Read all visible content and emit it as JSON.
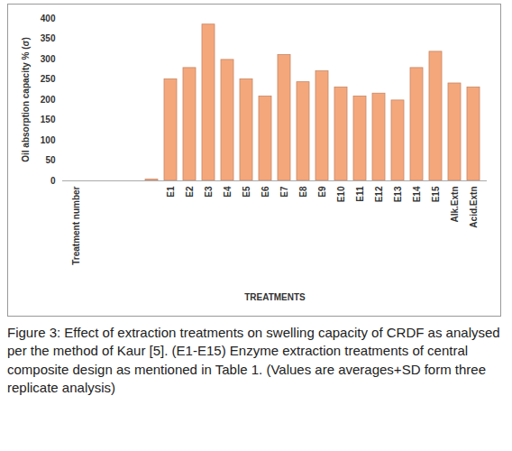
{
  "chart_data": {
    "type": "bar",
    "y_label": "Oil absorption capacity % (σ)",
    "x_label": "TREATMENTS",
    "caption": "Figure 3: Effect of extraction treatments on swelling capacity of CRDF as analysed per the method of Kaur [5]. (E1-E15) Enzyme extraction treatments of central composite design as mentioned in Table 1. (Values are averages+SD form three replicate analysis)",
    "categories": [
      "Treatment number",
      null,
      null,
      null,
      null,
      "E1",
      "E2",
      "E3",
      "E4",
      "E5",
      "E6",
      "E7",
      "E8",
      "E9",
      "E10",
      "E11",
      "E12",
      "E13",
      "E14",
      "E15",
      "Alk.Extn",
      "Acid.Extn"
    ],
    "values": [
      null,
      null,
      null,
      null,
      3,
      250,
      278,
      385,
      298,
      250,
      208,
      310,
      243,
      270,
      230,
      208,
      215,
      198,
      278,
      318,
      240,
      230
    ],
    "color": "#f5a77c",
    "ylim": [
      0,
      400
    ],
    "yticks": [
      0,
      50,
      100,
      150,
      200,
      250,
      300,
      350,
      400
    ],
    "grid": false
  }
}
